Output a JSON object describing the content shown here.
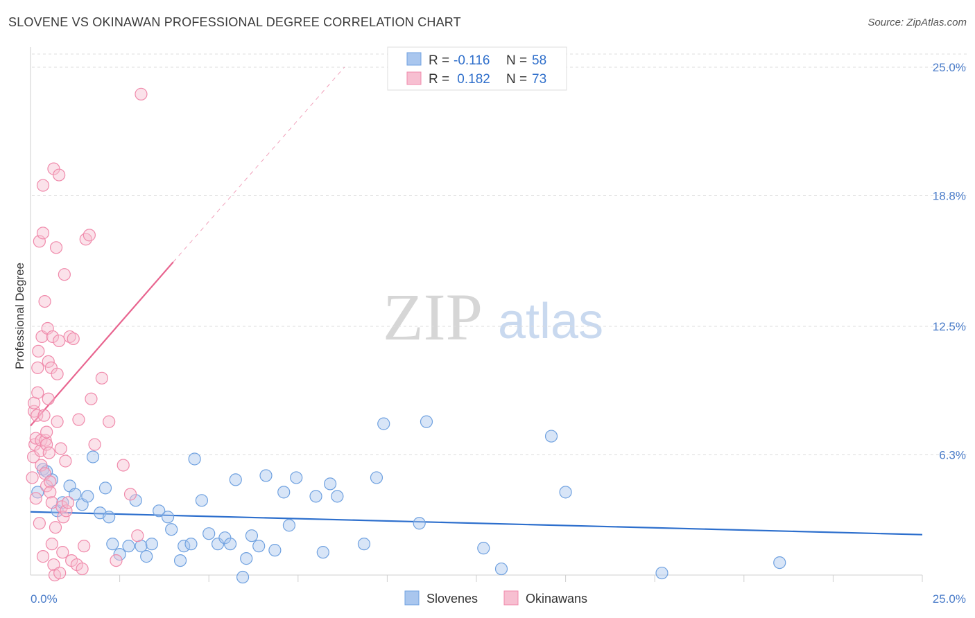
{
  "title": "SLOVENE VS OKINAWAN PROFESSIONAL DEGREE CORRELATION CHART",
  "source": "Source: ZipAtlas.com",
  "watermark": {
    "zip": "ZIP",
    "atlas": "atlas"
  },
  "colors": {
    "slovenes": "#6fa1e0",
    "slovenes_fill": "#a9c6ee",
    "slovenes_line": "#2d6fcd",
    "okinawans": "#f08aab",
    "okinawans_fill": "#f7bfd1",
    "okinawans_line": "#e8648f",
    "tick": "#4a7cc9"
  },
  "legend": {
    "rows": [
      {
        "r_label": "R = ",
        "r_value": "-0.116",
        "n_label": "N = ",
        "n_value": "58"
      },
      {
        "r_label": "R = ",
        "r_value": " 0.182",
        "n_label": "N = ",
        "n_value": "73"
      }
    ]
  },
  "chart_data": {
    "type": "scatter",
    "xlabel": "",
    "ylabel": "Professional Degree",
    "xlim": [
      0,
      25
    ],
    "ylim": [
      0,
      25.0
    ],
    "x_tick_labels": [
      "0.0%",
      "25.0%"
    ],
    "y_ticks": [
      {
        "value": 6.3,
        "label": "6.3%"
      },
      {
        "value": 12.5,
        "label": "12.5%"
      },
      {
        "value": 18.8,
        "label": "18.8%"
      },
      {
        "value": 25.0,
        "label": "25.0%"
      }
    ],
    "series": [
      {
        "name": "Slovenes",
        "r": -0.116,
        "n": 58,
        "trend": {
          "x0": 0.0,
          "y0": 3.55,
          "x1": 25.0,
          "y1": 2.45
        },
        "points": [
          [
            0.2,
            4.5
          ],
          [
            0.35,
            5.6
          ],
          [
            0.45,
            5.5
          ],
          [
            0.6,
            5.1
          ],
          [
            0.75,
            3.6
          ],
          [
            0.9,
            4.0
          ],
          [
            1.1,
            4.8
          ],
          [
            1.25,
            4.4
          ],
          [
            1.45,
            3.9
          ],
          [
            1.6,
            4.3
          ],
          [
            1.75,
            6.2
          ],
          [
            1.95,
            3.5
          ],
          [
            2.1,
            4.7
          ],
          [
            2.2,
            3.3
          ],
          [
            2.3,
            2.0
          ],
          [
            2.5,
            1.5
          ],
          [
            2.75,
            1.9
          ],
          [
            2.95,
            4.1
          ],
          [
            3.1,
            1.9
          ],
          [
            3.25,
            1.4
          ],
          [
            3.4,
            2.0
          ],
          [
            3.6,
            3.6
          ],
          [
            3.85,
            3.3
          ],
          [
            3.95,
            2.7
          ],
          [
            4.2,
            1.2
          ],
          [
            4.3,
            1.9
          ],
          [
            4.5,
            2.0
          ],
          [
            4.6,
            6.1
          ],
          [
            4.8,
            4.1
          ],
          [
            5.0,
            2.5
          ],
          [
            5.25,
            2.0
          ],
          [
            5.45,
            2.3
          ],
          [
            5.6,
            2.0
          ],
          [
            5.75,
            5.1
          ],
          [
            5.95,
            0.4
          ],
          [
            6.05,
            1.3
          ],
          [
            6.2,
            2.4
          ],
          [
            6.4,
            1.9
          ],
          [
            6.6,
            5.3
          ],
          [
            6.85,
            1.7
          ],
          [
            7.1,
            4.5
          ],
          [
            7.25,
            2.9
          ],
          [
            7.45,
            5.2
          ],
          [
            8.0,
            4.3
          ],
          [
            8.2,
            1.6
          ],
          [
            8.4,
            4.9
          ],
          [
            8.6,
            4.3
          ],
          [
            9.35,
            2.0
          ],
          [
            9.7,
            5.2
          ],
          [
            9.9,
            7.8
          ],
          [
            10.9,
            3.0
          ],
          [
            11.1,
            7.9
          ],
          [
            12.7,
            1.8
          ],
          [
            13.2,
            0.8
          ],
          [
            14.6,
            7.2
          ],
          [
            15.0,
            4.5
          ],
          [
            17.7,
            0.6
          ],
          [
            21.0,
            1.1
          ]
        ]
      },
      {
        "name": "Okinawans",
        "r": 0.182,
        "n": 73,
        "trend": {
          "x0": 0.0,
          "y0": 7.7,
          "x1": 4.0,
          "y1": 15.6
        },
        "trend_extension": {
          "x0": 4.0,
          "y0": 15.6,
          "x1": 8.8,
          "y1": 25.0
        },
        "points": [
          [
            0.05,
            5.2
          ],
          [
            0.08,
            6.2
          ],
          [
            0.1,
            8.4
          ],
          [
            0.1,
            8.8
          ],
          [
            0.12,
            6.8
          ],
          [
            0.15,
            7.1
          ],
          [
            0.18,
            8.2
          ],
          [
            0.2,
            9.3
          ],
          [
            0.2,
            10.5
          ],
          [
            0.22,
            11.3
          ],
          [
            0.25,
            16.6
          ],
          [
            0.28,
            6.5
          ],
          [
            0.3,
            7.0
          ],
          [
            0.3,
            5.8
          ],
          [
            0.32,
            12.0
          ],
          [
            0.35,
            17.0
          ],
          [
            0.35,
            19.3
          ],
          [
            0.38,
            8.2
          ],
          [
            0.4,
            13.7
          ],
          [
            0.4,
            5.4
          ],
          [
            0.42,
            7.0
          ],
          [
            0.45,
            6.8
          ],
          [
            0.45,
            4.8
          ],
          [
            0.48,
            12.4
          ],
          [
            0.5,
            10.8
          ],
          [
            0.5,
            9.0
          ],
          [
            0.52,
            6.4
          ],
          [
            0.55,
            5.0
          ],
          [
            0.55,
            4.5
          ],
          [
            0.58,
            10.5
          ],
          [
            0.6,
            4.0
          ],
          [
            0.6,
            2.0
          ],
          [
            0.62,
            12.0
          ],
          [
            0.65,
            20.1
          ],
          [
            0.65,
            1.0
          ],
          [
            0.68,
            0.5
          ],
          [
            0.7,
            2.8
          ],
          [
            0.72,
            16.3
          ],
          [
            0.75,
            7.9
          ],
          [
            0.75,
            10.2
          ],
          [
            0.8,
            19.8
          ],
          [
            0.8,
            11.8
          ],
          [
            0.82,
            0.6
          ],
          [
            0.85,
            6.6
          ],
          [
            0.88,
            3.8
          ],
          [
            0.9,
            1.6
          ],
          [
            0.92,
            3.3
          ],
          [
            0.95,
            15.0
          ],
          [
            0.98,
            6.0
          ],
          [
            1.0,
            3.6
          ],
          [
            1.05,
            4.0
          ],
          [
            1.1,
            12.0
          ],
          [
            1.15,
            1.2
          ],
          [
            1.2,
            11.9
          ],
          [
            1.3,
            1.0
          ],
          [
            1.35,
            8.0
          ],
          [
            1.45,
            0.8
          ],
          [
            1.5,
            1.9
          ],
          [
            1.55,
            16.7
          ],
          [
            1.65,
            16.9
          ],
          [
            1.7,
            9.0
          ],
          [
            1.8,
            6.8
          ],
          [
            2.0,
            10.0
          ],
          [
            2.2,
            7.9
          ],
          [
            2.4,
            1.2
          ],
          [
            2.6,
            5.8
          ],
          [
            2.8,
            4.4
          ],
          [
            3.0,
            2.4
          ],
          [
            3.1,
            23.7
          ],
          [
            0.15,
            4.2
          ],
          [
            0.25,
            3.0
          ],
          [
            0.35,
            1.4
          ],
          [
            0.45,
            7.4
          ]
        ]
      }
    ]
  },
  "bottom_legend": [
    "Slovenes",
    "Okinawans"
  ]
}
